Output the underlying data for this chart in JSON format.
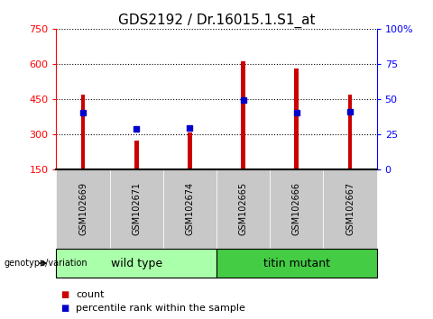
{
  "title": "GDS2192 / Dr.16015.1.S1_at",
  "samples": [
    "GSM102669",
    "GSM102671",
    "GSM102674",
    "GSM102665",
    "GSM102666",
    "GSM102667"
  ],
  "bar_heights": [
    470,
    270,
    307,
    610,
    580,
    470
  ],
  "percentile_values": [
    390,
    320,
    325,
    445,
    390,
    395
  ],
  "bar_color": "#cc0000",
  "percentile_color": "#0000cc",
  "ylim_left": [
    150,
    750
  ],
  "ylim_right": [
    0,
    100
  ],
  "yticks_left": [
    150,
    300,
    450,
    600,
    750
  ],
  "yticks_right": [
    0,
    25,
    50,
    75,
    100
  ],
  "ytick_labels_left": [
    "150",
    "300",
    "450",
    "600",
    "750"
  ],
  "ytick_labels_right": [
    "0",
    "25",
    "50",
    "75",
    "100%"
  ],
  "group_wt_label": "wild type",
  "group_tm_label": "titin mutant",
  "group_wt_color": "#aaffaa",
  "group_tm_color": "#44cc44",
  "group_label": "genotype/variation",
  "legend_count_label": "count",
  "legend_percentile_label": "percentile rank within the sample",
  "bar_width": 0.08,
  "title_fontsize": 11,
  "tick_fontsize": 8,
  "sample_fontsize": 7,
  "legend_fontsize": 8,
  "group_fontsize": 9
}
